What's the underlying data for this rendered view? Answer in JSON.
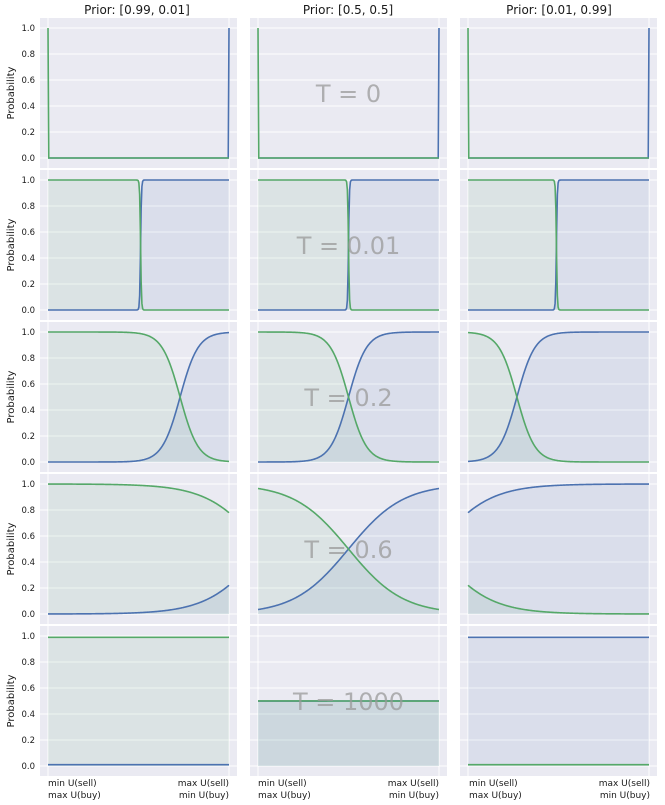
{
  "chart_data": {
    "type": "line",
    "column_titles": [
      "Prior: [0.99, 0.01]",
      "Prior: [0.5, 0.5]",
      "Prior: [0.01, 0.99]"
    ],
    "priors": [
      [
        0.99,
        0.01
      ],
      [
        0.5,
        0.5
      ],
      [
        0.01,
        0.99
      ]
    ],
    "temperatures": [
      0,
      0.01,
      0.2,
      0.6,
      1000
    ],
    "temperature_labels": [
      "T = 0",
      "T = 0.01",
      "T = 0.2",
      "T = 0.6",
      "T = 1000"
    ],
    "ylabel": "Probability",
    "ylim": [
      0,
      1
    ],
    "yticks": [
      "0.0",
      "0.2",
      "0.4",
      "0.6",
      "0.8",
      "1.0"
    ],
    "xtick_left": [
      "min U(sell)",
      "max U(buy)"
    ],
    "xtick_right": [
      "max U(sell)",
      "min U(buy)"
    ],
    "grid": true,
    "colors": {
      "buy": "#4c72b0",
      "sell": "#55a868",
      "panel_bg": "#eaeaf2",
      "grid": "#ffffff"
    }
  }
}
